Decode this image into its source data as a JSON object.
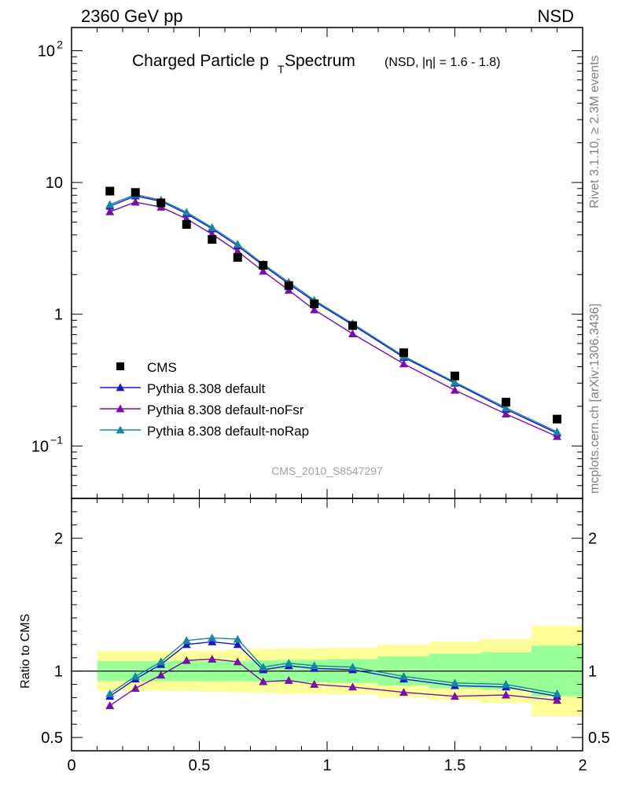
{
  "header": {
    "left": "2360 GeV pp",
    "right": "NSD"
  },
  "side_text": {
    "rivet": "Rivet 3.1.10, ≥ 2.3M events",
    "mcplots": "mcplots.cern.ch [arXiv:1306.3436]"
  },
  "chart_data": {
    "type": "line",
    "title": "Charged Particle p",
    "title_sub": "T",
    "title_rest": " Spectrum",
    "title_note": "(NSD, |η| = 1.6 - 1.8)",
    "watermark": "CMS_2010_S8547297",
    "x_ticks": [
      {
        "v": 0,
        "label": "0"
      },
      {
        "v": 0.5,
        "label": "0.5"
      },
      {
        "v": 1,
        "label": "1"
      },
      {
        "v": 1.5,
        "label": "1.5"
      },
      {
        "v": 2,
        "label": "2"
      }
    ],
    "xlim": [
      0,
      2
    ],
    "main": {
      "yscale": "log",
      "ylim": [
        0.04,
        150
      ],
      "y_ticks": [
        {
          "v": 100,
          "base": "10",
          "exp": "2"
        },
        {
          "v": 10,
          "base": "10",
          "exp": ""
        },
        {
          "v": 1,
          "base": "1",
          "exp": ""
        },
        {
          "v": 0.1,
          "base": "10",
          "exp": "−1"
        }
      ]
    },
    "ratio": {
      "ylabel": "Ratio to CMS",
      "ylim": [
        0.4,
        2.3
      ],
      "y_ticks": [
        {
          "v": 0.5,
          "label": "0.5"
        },
        {
          "v": 1,
          "label": "1"
        },
        {
          "v": 2,
          "label": "2"
        }
      ]
    },
    "x": [
      0.15,
      0.25,
      0.35,
      0.45,
      0.55,
      0.65,
      0.75,
      0.85,
      0.95,
      1.1,
      1.3,
      1.5,
      1.7,
      1.9
    ],
    "bin_edges": [
      0.1,
      0.2,
      0.3,
      0.4,
      0.5,
      0.6,
      0.7,
      0.8,
      0.9,
      1.0,
      1.2,
      1.4,
      1.6,
      1.8,
      2.0
    ],
    "data": {
      "name": "CMS",
      "color": "#000000",
      "values": [
        8.6,
        8.4,
        7.0,
        4.8,
        3.7,
        2.7,
        2.35,
        1.65,
        1.2,
        0.82,
        0.51,
        0.34,
        0.215,
        0.16
      ],
      "band_inner": [
        0.075,
        0.075,
        0.075,
        0.075,
        0.075,
        0.075,
        0.08,
        0.085,
        0.085,
        0.09,
        0.11,
        0.13,
        0.14,
        0.19
      ],
      "band_outer": [
        0.15,
        0.15,
        0.15,
        0.15,
        0.155,
        0.16,
        0.165,
        0.17,
        0.17,
        0.175,
        0.2,
        0.22,
        0.24,
        0.34
      ]
    },
    "series": [
      {
        "name": "Pythia 8.308 default",
        "color": "#1919c8",
        "values": [
          6.6,
          7.9,
          7.2,
          5.8,
          4.45,
          3.3,
          2.35,
          1.7,
          1.25,
          0.83,
          0.47,
          0.3,
          0.19,
          0.125
        ],
        "ratio": [
          0.81,
          0.94,
          1.05,
          1.2,
          1.22,
          1.2,
          1.01,
          1.04,
          1.02,
          1.01,
          0.94,
          0.89,
          0.88,
          0.81
        ]
      },
      {
        "name": "Pythia 8.308 default-noFsr",
        "color": "#7a0fa8",
        "values": [
          6.0,
          7.1,
          6.5,
          5.3,
          4.05,
          3.0,
          2.12,
          1.52,
          1.08,
          0.71,
          0.42,
          0.265,
          0.175,
          0.118
        ],
        "ratio": [
          0.74,
          0.87,
          0.97,
          1.08,
          1.09,
          1.07,
          0.92,
          0.93,
          0.9,
          0.88,
          0.84,
          0.81,
          0.82,
          0.78
        ]
      },
      {
        "name": "Pythia 8.308 default-noRap",
        "color": "#1487a3",
        "values": [
          6.8,
          8.1,
          7.35,
          5.95,
          4.55,
          3.4,
          2.4,
          1.75,
          1.28,
          0.85,
          0.48,
          0.305,
          0.195,
          0.128
        ],
        "ratio": [
          0.83,
          0.96,
          1.07,
          1.23,
          1.25,
          1.24,
          1.03,
          1.06,
          1.04,
          1.03,
          0.96,
          0.91,
          0.9,
          0.83
        ]
      }
    ],
    "legend_position": "lower-left",
    "colors": {
      "band_outer": "#ffff99",
      "band_inner": "#99ff99"
    }
  }
}
